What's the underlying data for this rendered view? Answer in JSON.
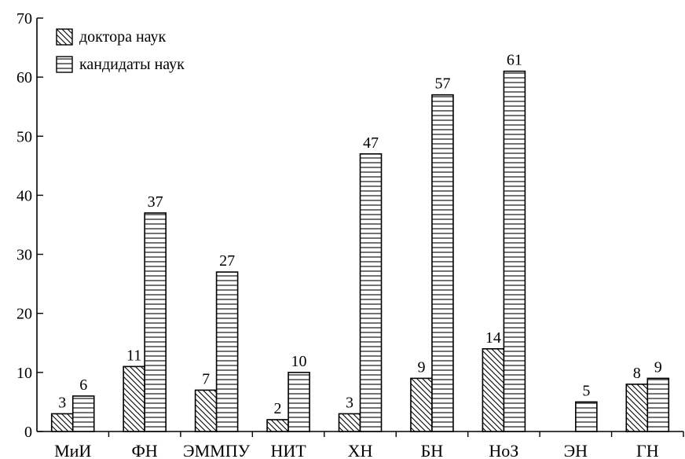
{
  "chart_data": {
    "type": "bar",
    "categories": [
      "МиИ",
      "ФН",
      "ЭММПУ",
      "НИТ",
      "ХН",
      "БН",
      "НоЗ",
      "ЭН",
      "ГН"
    ],
    "series": [
      {
        "name": "доктора наук",
        "pattern": "diagonal",
        "values": [
          3,
          11,
          7,
          2,
          3,
          9,
          14,
          null,
          8
        ]
      },
      {
        "name": "кандидаты наук",
        "pattern": "horizontal",
        "values": [
          6,
          37,
          27,
          10,
          47,
          57,
          61,
          5,
          9
        ]
      }
    ],
    "ylim": [
      0,
      70
    ],
    "yticks": [
      0,
      10,
      20,
      30,
      40,
      50,
      60,
      70
    ],
    "legend_position": "top-left",
    "grid": false,
    "colors": {
      "stroke": "#000000",
      "fill": "#ffffff"
    }
  }
}
